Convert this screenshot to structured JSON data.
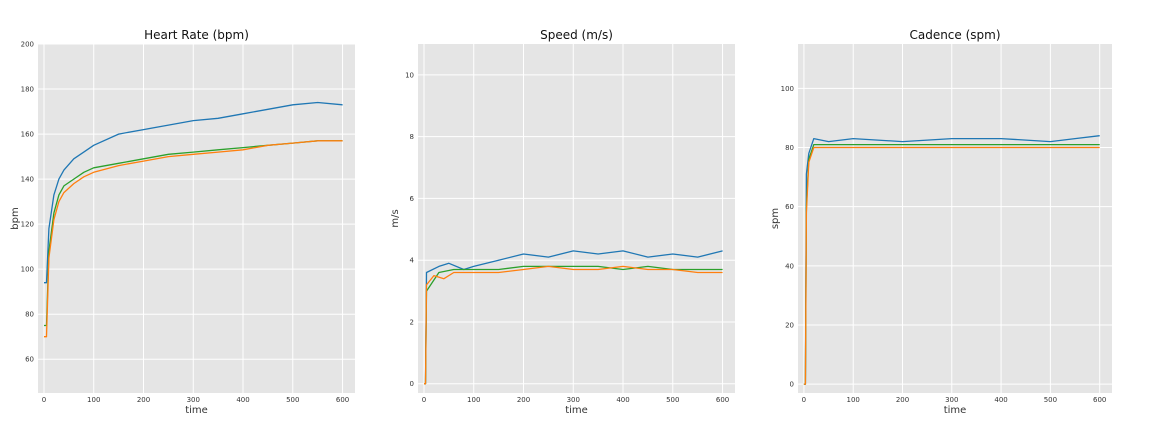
{
  "chart_data": [
    {
      "type": "line",
      "title": "Heart Rate (bpm)",
      "xlabel": "time",
      "ylabel": "bpm",
      "xlim": [
        -12,
        625
      ],
      "ylim": [
        45,
        200
      ],
      "xticks": [
        0,
        100,
        200,
        300,
        400,
        500,
        600
      ],
      "yticks": [
        60,
        80,
        100,
        120,
        140,
        160,
        180,
        200
      ],
      "grid": true,
      "background": "#e5e5e5",
      "series": [
        {
          "color": "#1f77b4",
          "points": [
            [
              0,
              94
            ],
            [
              5,
              94
            ],
            [
              10,
              118
            ],
            [
              20,
              133
            ],
            [
              30,
              140
            ],
            [
              40,
              144
            ],
            [
              60,
              149
            ],
            [
              80,
              152
            ],
            [
              100,
              155
            ],
            [
              150,
              160
            ],
            [
              200,
              162
            ],
            [
              250,
              164
            ],
            [
              300,
              166
            ],
            [
              350,
              167
            ],
            [
              400,
              169
            ],
            [
              450,
              171
            ],
            [
              500,
              173
            ],
            [
              550,
              174
            ],
            [
              600,
              173
            ]
          ]
        },
        {
          "color": "#2ca02c",
          "points": [
            [
              0,
              75
            ],
            [
              5,
              75
            ],
            [
              10,
              108
            ],
            [
              20,
              125
            ],
            [
              30,
              133
            ],
            [
              40,
              137
            ],
            [
              60,
              140
            ],
            [
              80,
              143
            ],
            [
              100,
              145
            ],
            [
              150,
              147
            ],
            [
              200,
              149
            ],
            [
              250,
              151
            ],
            [
              300,
              152
            ],
            [
              350,
              153
            ],
            [
              400,
              154
            ],
            [
              450,
              155
            ],
            [
              500,
              156
            ],
            [
              550,
              157
            ],
            [
              600,
              157
            ]
          ]
        },
        {
          "color": "#ff7f0e",
          "points": [
            [
              0,
              70
            ],
            [
              5,
              70
            ],
            [
              10,
              105
            ],
            [
              20,
              122
            ],
            [
              30,
              130
            ],
            [
              40,
              134
            ],
            [
              60,
              138
            ],
            [
              80,
              141
            ],
            [
              100,
              143
            ],
            [
              150,
              146
            ],
            [
              200,
              148
            ],
            [
              250,
              150
            ],
            [
              300,
              151
            ],
            [
              350,
              152
            ],
            [
              400,
              153
            ],
            [
              450,
              155
            ],
            [
              500,
              156
            ],
            [
              550,
              157
            ],
            [
              600,
              157
            ]
          ]
        }
      ]
    },
    {
      "type": "line",
      "title": "Speed (m/s)",
      "xlabel": "time",
      "ylabel": "m/s",
      "xlim": [
        -12,
        625
      ],
      "ylim": [
        -0.3,
        11
      ],
      "xticks": [
        0,
        100,
        200,
        300,
        400,
        500,
        600
      ],
      "yticks": [
        0,
        2,
        4,
        6,
        8,
        10
      ],
      "grid": true,
      "background": "#e5e5e5",
      "series": [
        {
          "color": "#1f77b4",
          "points": [
            [
              0,
              0
            ],
            [
              3,
              0
            ],
            [
              5,
              3.6
            ],
            [
              30,
              3.8
            ],
            [
              50,
              3.9
            ],
            [
              80,
              3.7
            ],
            [
              100,
              3.8
            ],
            [
              150,
              4.0
            ],
            [
              200,
              4.2
            ],
            [
              250,
              4.1
            ],
            [
              300,
              4.3
            ],
            [
              350,
              4.2
            ],
            [
              400,
              4.3
            ],
            [
              450,
              4.1
            ],
            [
              500,
              4.2
            ],
            [
              550,
              4.1
            ],
            [
              600,
              4.3
            ]
          ]
        },
        {
          "color": "#2ca02c",
          "points": [
            [
              0,
              0
            ],
            [
              3,
              0
            ],
            [
              5,
              3.0
            ],
            [
              30,
              3.6
            ],
            [
              60,
              3.7
            ],
            [
              100,
              3.7
            ],
            [
              150,
              3.7
            ],
            [
              200,
              3.8
            ],
            [
              250,
              3.8
            ],
            [
              300,
              3.8
            ],
            [
              350,
              3.8
            ],
            [
              400,
              3.7
            ],
            [
              450,
              3.8
            ],
            [
              500,
              3.7
            ],
            [
              550,
              3.7
            ],
            [
              600,
              3.7
            ]
          ]
        },
        {
          "color": "#ff7f0e",
          "points": [
            [
              0,
              0
            ],
            [
              3,
              0
            ],
            [
              5,
              3.2
            ],
            [
              20,
              3.5
            ],
            [
              40,
              3.4
            ],
            [
              60,
              3.6
            ],
            [
              100,
              3.6
            ],
            [
              150,
              3.6
            ],
            [
              200,
              3.7
            ],
            [
              250,
              3.8
            ],
            [
              300,
              3.7
            ],
            [
              350,
              3.7
            ],
            [
              400,
              3.8
            ],
            [
              450,
              3.7
            ],
            [
              500,
              3.7
            ],
            [
              550,
              3.6
            ],
            [
              600,
              3.6
            ]
          ]
        }
      ]
    },
    {
      "type": "line",
      "title": "Cadence (spm)",
      "xlabel": "time",
      "ylabel": "spm",
      "xlim": [
        -12,
        625
      ],
      "ylim": [
        -3,
        115
      ],
      "xticks": [
        0,
        100,
        200,
        300,
        400,
        500,
        600
      ],
      "yticks": [
        0,
        20,
        40,
        60,
        80,
        100
      ],
      "grid": true,
      "background": "#e5e5e5",
      "series": [
        {
          "color": "#1f77b4",
          "points": [
            [
              0,
              0
            ],
            [
              3,
              0
            ],
            [
              5,
              71
            ],
            [
              10,
              78
            ],
            [
              20,
              83
            ],
            [
              50,
              82
            ],
            [
              100,
              83
            ],
            [
              200,
              82
            ],
            [
              300,
              83
            ],
            [
              400,
              83
            ],
            [
              500,
              82
            ],
            [
              550,
              83
            ],
            [
              600,
              84
            ]
          ]
        },
        {
          "color": "#2ca02c",
          "points": [
            [
              0,
              0
            ],
            [
              3,
              0
            ],
            [
              5,
              60
            ],
            [
              10,
              76
            ],
            [
              20,
              81
            ],
            [
              50,
              81
            ],
            [
              100,
              81
            ],
            [
              200,
              81
            ],
            [
              300,
              81
            ],
            [
              400,
              81
            ],
            [
              500,
              81
            ],
            [
              600,
              81
            ]
          ]
        },
        {
          "color": "#ff7f0e",
          "points": [
            [
              0,
              0
            ],
            [
              3,
              0
            ],
            [
              5,
              58
            ],
            [
              10,
              75
            ],
            [
              20,
              80
            ],
            [
              50,
              80
            ],
            [
              100,
              80
            ],
            [
              200,
              80
            ],
            [
              300,
              80
            ],
            [
              400,
              80
            ],
            [
              500,
              80
            ],
            [
              600,
              80
            ]
          ]
        }
      ]
    }
  ]
}
